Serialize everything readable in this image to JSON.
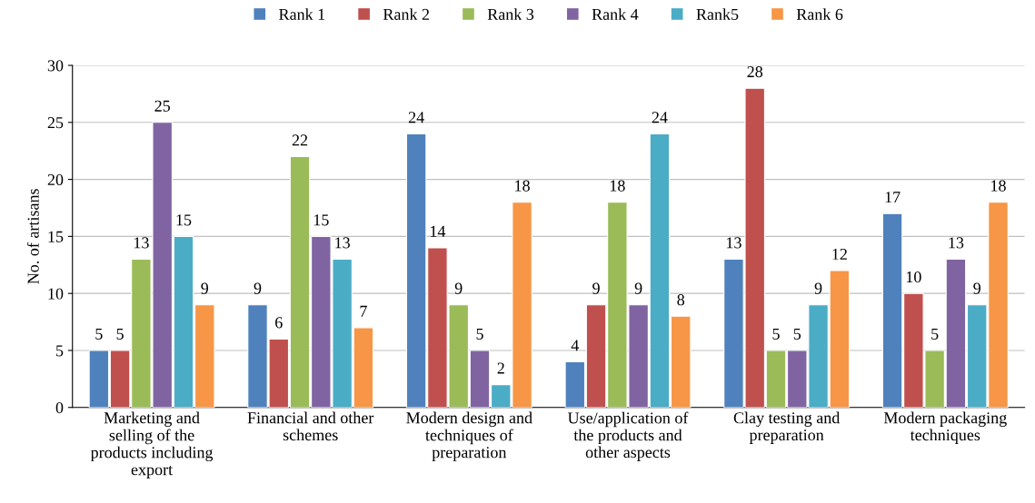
{
  "chart_data": {
    "type": "bar",
    "ylabel": "No. of artisans",
    "categories": [
      "Marketing and\nselling of the\nproducts including\nexport",
      "Financial and other\nschemes",
      "Modern design and\ntechniques of\npreparation",
      "Use/application of\nthe products and\nother aspects",
      "Clay testing and\npreparation",
      "Modern packaging\ntechniques"
    ],
    "series": [
      {
        "name": "Rank 1",
        "color": "#4f81bd",
        "values": [
          5,
          9,
          24,
          4,
          13,
          17
        ]
      },
      {
        "name": "Rank 2",
        "color": "#c0504d",
        "values": [
          5,
          6,
          14,
          9,
          28,
          10
        ]
      },
      {
        "name": "Rank 3",
        "color": "#9bbb59",
        "values": [
          13,
          22,
          9,
          18,
          5,
          5
        ]
      },
      {
        "name": "Rank 4",
        "color": "#8064a2",
        "values": [
          25,
          15,
          5,
          9,
          5,
          13
        ]
      },
      {
        "name": "Rank5",
        "color": "#4bacc6",
        "values": [
          15,
          13,
          2,
          24,
          9,
          9
        ]
      },
      {
        "name": "Rank 6",
        "color": "#f79646",
        "values": [
          9,
          7,
          18,
          8,
          12,
          18
        ]
      }
    ],
    "ylim": [
      0,
      30
    ],
    "yticks": [
      0,
      5,
      10,
      15,
      20,
      25,
      30
    ],
    "grid": "y",
    "legend": "top",
    "data_labels": true
  }
}
